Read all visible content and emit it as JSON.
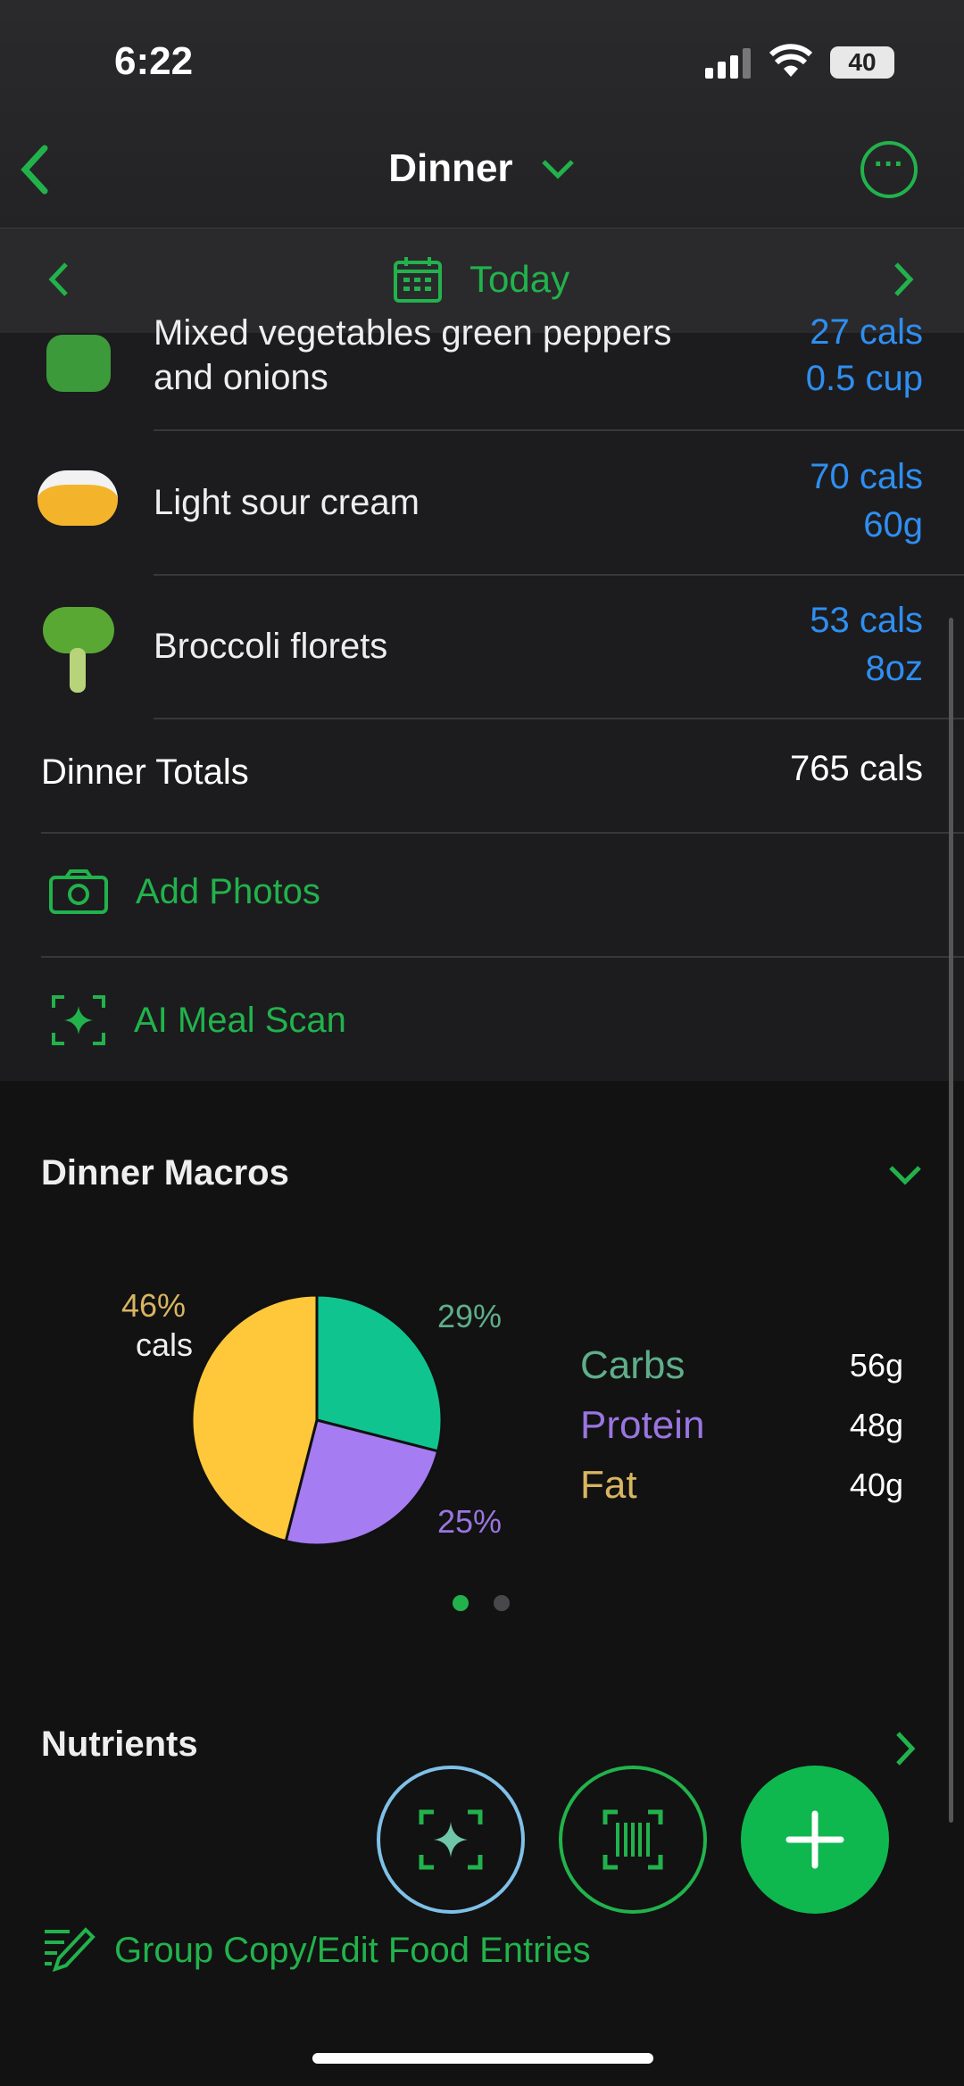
{
  "status_bar": {
    "time": "6:22",
    "battery": "40"
  },
  "header": {
    "title": "Dinner"
  },
  "date_nav": {
    "label": "Today"
  },
  "foods": [
    {
      "name_line1": "Mixed vegetables green peppers",
      "name_line2": "and onions",
      "cals": "27 cals",
      "amount": "0.5 cup",
      "icon": "bell-pepper-icon"
    },
    {
      "name": "Light sour cream",
      "cals": "70 cals",
      "amount": "60g",
      "icon": "sour-cream-bowl-icon"
    },
    {
      "name": "Broccoli florets",
      "cals": "53 cals",
      "amount": "8oz",
      "icon": "broccoli-icon"
    }
  ],
  "totals": {
    "label": "Dinner Totals",
    "value": "765 cals"
  },
  "actions": {
    "add_photos": "Add Photos",
    "ai_meal_scan": "AI Meal Scan"
  },
  "macros": {
    "title": "Dinner Macros",
    "cals_label": "cals",
    "legend": [
      {
        "name": "Carbs",
        "value": "56g",
        "color": "#10c48f",
        "label_color": "#5fae8a"
      },
      {
        "name": "Protein",
        "value": "48g",
        "color": "#a67cf2",
        "label_color": "#9a75e0"
      },
      {
        "name": "Fat",
        "value": "40g",
        "color": "#fec83a",
        "label_color": "#d8b560"
      }
    ]
  },
  "chart_data": {
    "type": "pie",
    "categories": [
      "Carbs",
      "Protein",
      "Fat"
    ],
    "values": [
      29,
      25,
      46
    ],
    "labels": [
      "29%",
      "25%",
      "46%"
    ],
    "colors": [
      "#10c48f",
      "#a67cf2",
      "#fec83a"
    ]
  },
  "nutrients": {
    "title": "Nutrients"
  },
  "group_copy": {
    "label": "Group Copy/Edit Food Entries"
  },
  "colors": {
    "accent": "#22b24c",
    "link": "#2f8ef0"
  }
}
